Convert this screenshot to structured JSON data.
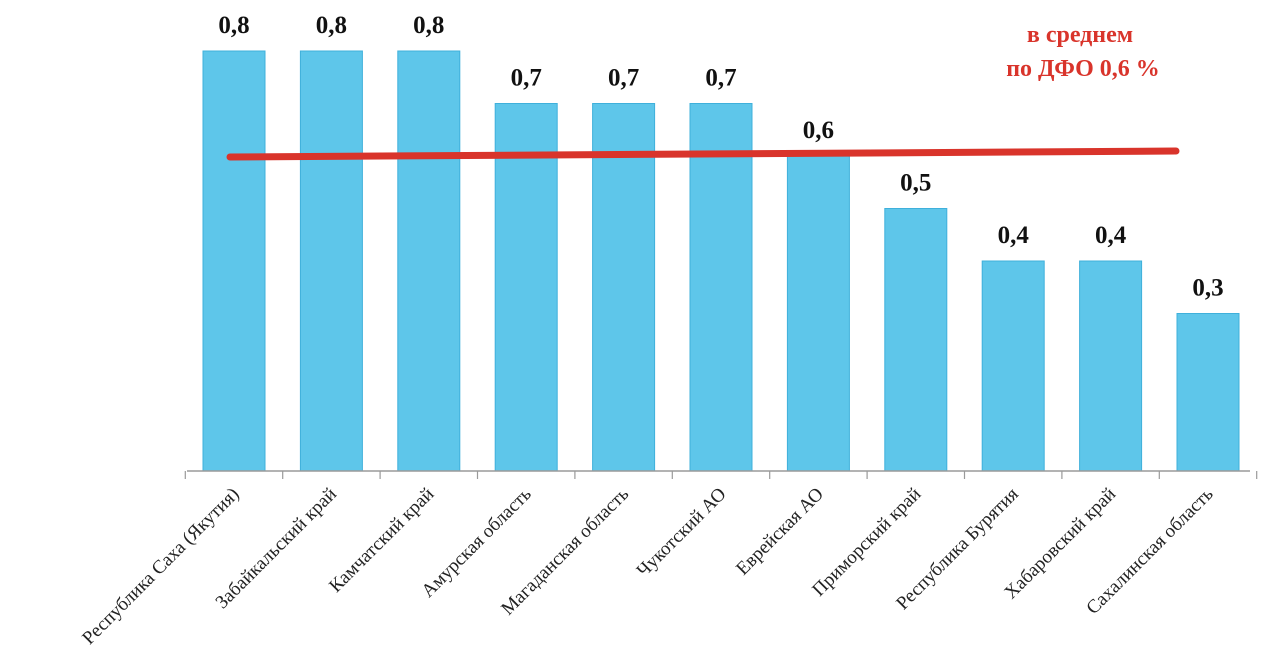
{
  "chart_data": {
    "type": "bar",
    "categories": [
      "Республика Саха (Якутия)",
      "Забайкальский край",
      "Камчатский край",
      "Амурская область",
      "Магаданская область",
      "Чукотский АО",
      "Еврейская АО",
      "Приморский край",
      "Республика Бурятия",
      "Хабаровский край",
      "Сахалинская область"
    ],
    "values": [
      0.8,
      0.8,
      0.8,
      0.7,
      0.7,
      0.7,
      0.6,
      0.5,
      0.4,
      0.4,
      0.3
    ],
    "value_labels": [
      "0,8",
      "0,8",
      "0,8",
      "0,7",
      "0,7",
      "0,7",
      "0,6",
      "0,5",
      "0,4",
      "0,4",
      "0,3"
    ],
    "average": {
      "value": 0.6,
      "label_line1": "в среднем",
      "label_line2": "по ДФО 0,6 %"
    },
    "ylim": [
      0,
      0.8
    ],
    "grid": false,
    "colors": {
      "bar": "#5ec6ea",
      "bar_edge": "#3fb0db",
      "average_line": "#d9342b",
      "average_text": "#d9342b",
      "axis": "#9a9a9a"
    }
  }
}
